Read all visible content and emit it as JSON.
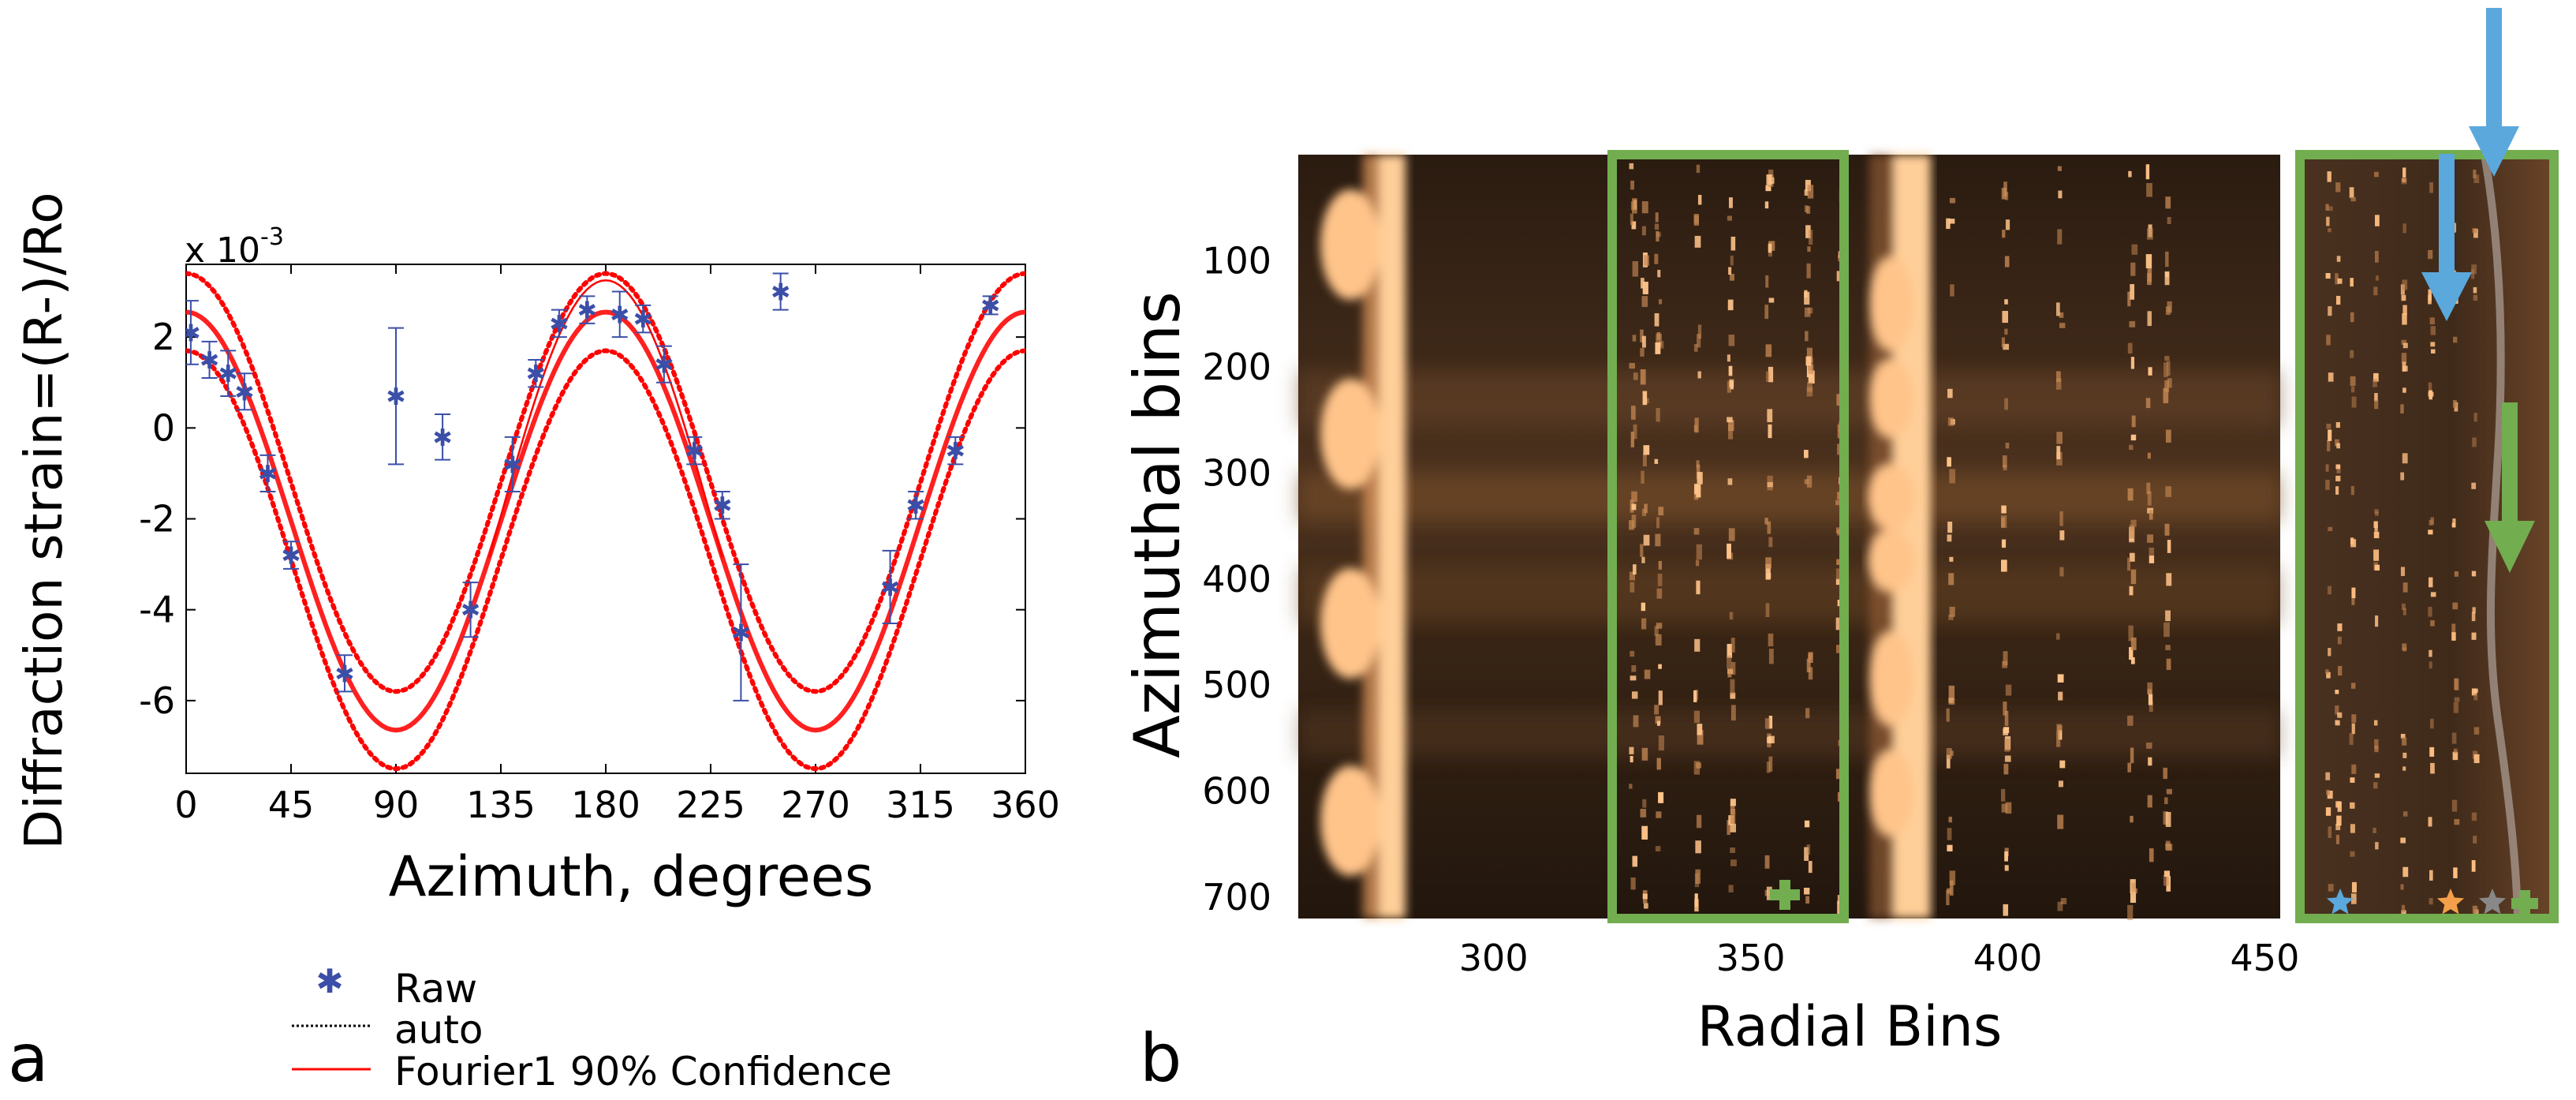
{
  "chart_data": [
    {
      "panel": "a",
      "type": "scatter",
      "xlabel": "Azimuth, degrees",
      "ylabel": "Diffraction strain=(R-)/Ro",
      "y_multiplier_base": "x 10",
      "y_multiplier_exp": "-3",
      "xlim": [
        0,
        360
      ],
      "ylim": [
        -7.6,
        3.6
      ],
      "xticks": [
        0,
        45,
        90,
        135,
        180,
        225,
        270,
        315,
        360
      ],
      "yticks": [
        2,
        0,
        -2,
        -4,
        -6
      ],
      "legend": {
        "position": "below",
        "entries": [
          {
            "label": "Raw",
            "marker": "star",
            "color": "#3b4fa8"
          },
          {
            "label": "auto",
            "marker": "dotted-line",
            "color": "#000000"
          },
          {
            "label": "Fourier1 90% Confidence",
            "marker": "line",
            "color": "#ff0000"
          }
        ]
      },
      "fit": {
        "a0": -2.05,
        "a1": 4.6,
        "period_deg": 180,
        "band": 0.85,
        "band_high_peak": 0.7
      },
      "raw_points": [
        {
          "x": 2,
          "y": 2.1,
          "err": 0.7
        },
        {
          "x": 10,
          "y": 1.5,
          "err": 0.4
        },
        {
          "x": 18,
          "y": 1.2,
          "err": 0.5
        },
        {
          "x": 25,
          "y": 0.8,
          "err": 0.4
        },
        {
          "x": 35,
          "y": -1.0,
          "err": 0.4
        },
        {
          "x": 45,
          "y": -2.8,
          "err": 0.3
        },
        {
          "x": 68,
          "y": -5.4,
          "err": 0.4
        },
        {
          "x": 90,
          "y": 0.7,
          "err": 1.5
        },
        {
          "x": 110,
          "y": -0.2,
          "err": 0.5
        },
        {
          "x": 122,
          "y": -4.0,
          "err": 0.6
        },
        {
          "x": 140,
          "y": -0.8,
          "err": 0.6
        },
        {
          "x": 150,
          "y": 1.2,
          "err": 0.3
        },
        {
          "x": 160,
          "y": 2.3,
          "err": 0.3
        },
        {
          "x": 172,
          "y": 2.6,
          "err": 0.3
        },
        {
          "x": 186,
          "y": 2.5,
          "err": 0.5
        },
        {
          "x": 196,
          "y": 2.4,
          "err": 0.3
        },
        {
          "x": 205,
          "y": 1.4,
          "err": 0.4
        },
        {
          "x": 218,
          "y": -0.5,
          "err": 0.3
        },
        {
          "x": 230,
          "y": -1.7,
          "err": 0.3
        },
        {
          "x": 238,
          "y": -4.5,
          "err": 1.5
        },
        {
          "x": 255,
          "y": 3.0,
          "err": 0.4
        },
        {
          "x": 302,
          "y": -3.5,
          "err": 0.8
        },
        {
          "x": 313,
          "y": -1.7,
          "err": 0.3
        },
        {
          "x": 330,
          "y": -0.5,
          "err": 0.3
        },
        {
          "x": 345,
          "y": 2.7,
          "err": 0.2
        }
      ]
    },
    {
      "panel": "b",
      "type": "heatmap",
      "xlabel": "Radial Bins",
      "ylabel": "Azimuthal bins",
      "xlim": [
        262,
        453
      ],
      "ylim": [
        0,
        720
      ],
      "xticks": [
        300,
        350,
        400,
        450
      ],
      "yticks": [
        100,
        200,
        300,
        400,
        500,
        600,
        700
      ],
      "highlight_box": {
        "x_range": [
          323,
          373
        ],
        "color": "#72ad4f"
      },
      "inset_markers": [
        "blue-star",
        "orange-star",
        "gray-star",
        "green-cross"
      ],
      "arrows": [
        "blue",
        "blue",
        "green"
      ]
    }
  ],
  "panel_labels": {
    "a": "a",
    "b": "b"
  },
  "colors": {
    "raw": "#3b4fa8",
    "fit": "#ff0000",
    "box": "#72ad4f",
    "arrow_blue": "#5aa8dc",
    "arrow_green": "#72ad4f",
    "heat_low": "#1c130c",
    "heat_high": "#ffc48a"
  }
}
